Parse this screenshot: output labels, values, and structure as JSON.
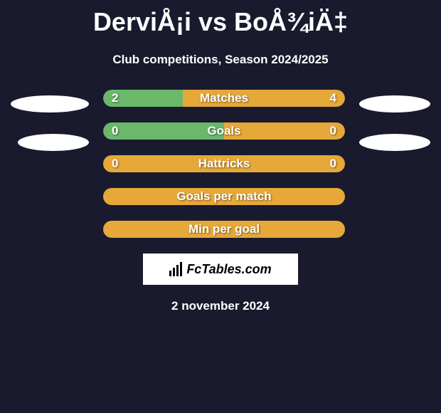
{
  "header": {
    "title": "DerviÅ¡i vs BoÅ¾iÄ‡",
    "subtitle": "Club competitions, Season 2024/2025"
  },
  "colors": {
    "background": "#1a1a2e",
    "bar_left": "#6bb86b",
    "bar_right": "#e6a838",
    "bar_full": "#e6a838",
    "text": "#ffffff"
  },
  "stats": [
    {
      "label": "Matches",
      "left_value": "2",
      "right_value": "4",
      "left_pct": 33,
      "right_pct": 67,
      "left_color": "#6bb86b",
      "right_color": "#e6a838"
    },
    {
      "label": "Goals",
      "left_value": "0",
      "right_value": "0",
      "left_pct": 50,
      "right_pct": 50,
      "left_color": "#6bb86b",
      "right_color": "#e6a838"
    },
    {
      "label": "Hattricks",
      "left_value": "0",
      "right_value": "0",
      "left_pct": 0,
      "right_pct": 0,
      "left_color": "#e6a838",
      "right_color": "#e6a838",
      "full_color": "#e6a838"
    },
    {
      "label": "Goals per match",
      "left_value": "",
      "right_value": "",
      "left_pct": 0,
      "right_pct": 0,
      "full_color": "#e6a838"
    },
    {
      "label": "Min per goal",
      "left_value": "",
      "right_value": "",
      "left_pct": 0,
      "right_pct": 0,
      "full_color": "#e6a838"
    }
  ],
  "logo": {
    "text": "FcTables.com"
  },
  "footer": {
    "date": "2 november 2024"
  }
}
